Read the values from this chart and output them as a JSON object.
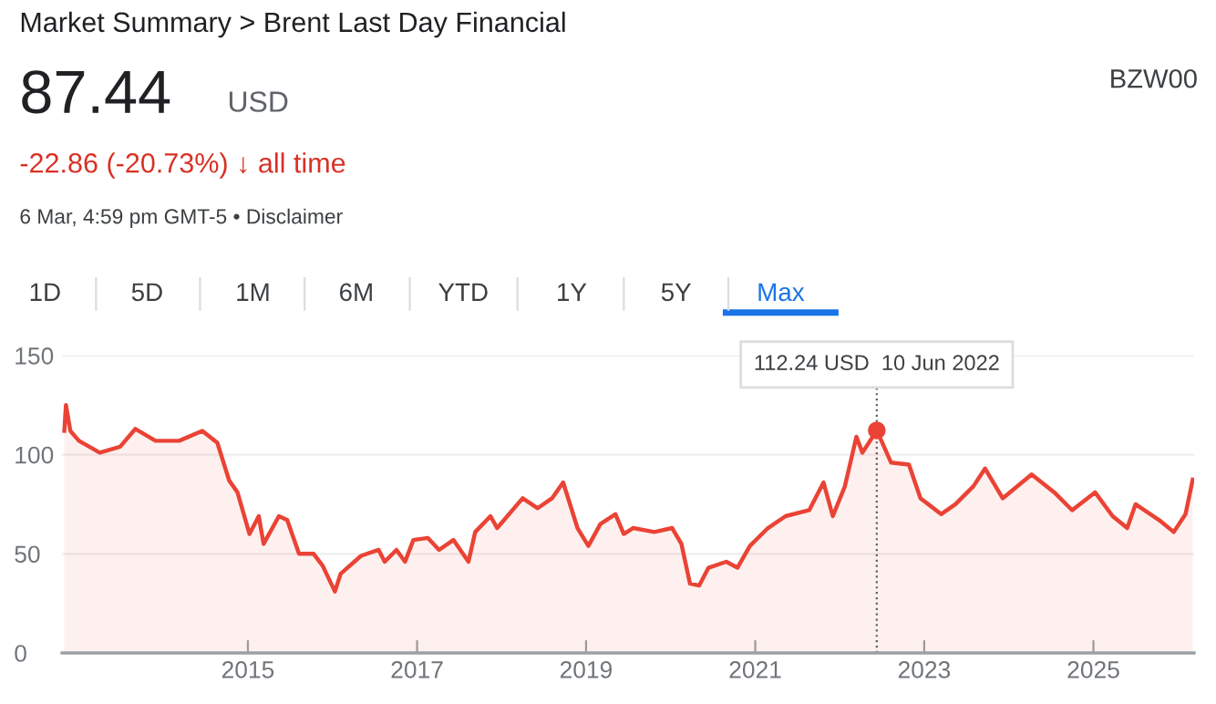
{
  "chart_data": {
    "type": "area",
    "title": "Market Summary > Brent Last Day Financial",
    "annotations": [
      "87.44",
      "USD",
      "-22.86 (-20.73%) ↓ all time",
      "6 Mar, 4:59 pm GMT-5 • Disclaimer",
      "BZW00",
      "1D",
      "5D",
      "1M",
      "6M",
      "YTD",
      "1Y",
      "5Y",
      "Max",
      {
        "text": "112.24 USD  10 Jun 2022",
        "x": "2022-06-10",
        "y": 112.24
      }
    ],
    "x": [
      "2012-10-30",
      "2012-11-06",
      "2012-11-25",
      "2013-01-01",
      "2013-04-01",
      "2013-06-28",
      "2013-09-02",
      "2013-11-28",
      "2014-03-10",
      "2014-06-18",
      "2014-08-22",
      "2014-10-12",
      "2014-11-17",
      "2015-01-08",
      "2015-02-17",
      "2015-03-10",
      "2015-05-15",
      "2015-06-20",
      "2015-08-10",
      "2015-10-12",
      "2015-11-20",
      "2016-01-12",
      "2016-02-06",
      "2016-05-04",
      "2016-07-19",
      "2016-08-14",
      "2016-10-04",
      "2016-11-10",
      "2016-12-16",
      "2017-02-17",
      "2017-04-06",
      "2017-06-07",
      "2017-08-11",
      "2017-09-09",
      "2017-11-14",
      "2017-12-13",
      "2018-04-02",
      "2018-06-06",
      "2018-08-07",
      "2018-09-24",
      "2018-11-25",
      "2019-01-11",
      "2019-03-04",
      "2019-05-08",
      "2019-06-13",
      "2019-07-23",
      "2019-10-23",
      "2020-01-08",
      "2020-02-17",
      "2020-03-25",
      "2020-05-04",
      "2020-06-13",
      "2020-08-29",
      "2020-10-16",
      "2020-12-09",
      "2021-02-25",
      "2021-05-12",
      "2021-08-22",
      "2021-10-23",
      "2021-12-02",
      "2022-01-23",
      "2022-03-14",
      "2022-04-09",
      "2022-06-10",
      "2022-08-11",
      "2022-10-27",
      "2022-12-16",
      "2023-03-15",
      "2023-05-16",
      "2023-08-01",
      "2023-09-21",
      "2023-12-06",
      "2024-04-09",
      "2024-07-16",
      "2024-10-01",
      "2025-01-08",
      "2025-03-25",
      "2025-05-27",
      "2025-07-02",
      "2025-10-12",
      "2025-12-14",
      "2026-02-03",
      "2026-03-06"
    ],
    "series": [
      {
        "color": "#ea4335",
        "values": [
          112,
          125,
          112,
          107,
          101,
          104,
          113,
          107,
          107,
          112,
          106,
          87,
          81,
          60,
          69,
          55,
          69,
          67,
          50,
          50,
          44,
          31,
          40,
          49,
          52,
          46,
          52,
          46,
          57,
          58,
          52,
          57,
          46,
          61,
          69,
          63,
          78,
          73,
          78,
          86,
          63,
          54,
          65,
          70,
          60,
          63,
          61,
          63,
          55,
          35,
          34,
          43,
          46,
          43,
          54,
          63,
          69,
          72,
          86,
          69,
          84,
          109,
          101,
          112.24,
          96,
          95,
          78,
          70,
          75,
          84,
          93,
          78,
          90,
          81,
          72,
          81,
          69,
          63,
          75,
          67,
          61,
          70,
          87.44
        ]
      }
    ],
    "ref_lines": [
      {
        "axis": "x",
        "value": "2022-06-10",
        "line_style": "dotted",
        "color": "#5f6368"
      }
    ],
    "xlim": [
      "2012-10-20",
      "2026-03-12"
    ],
    "xticks": [
      {
        "value": "2015",
        "label": "2015"
      },
      {
        "value": "2017",
        "label": "2017"
      },
      {
        "value": "2019",
        "label": "2019"
      },
      {
        "value": "2021",
        "label": "2021"
      },
      {
        "value": "2023",
        "label": "2023"
      },
      {
        "value": "2025",
        "label": "2025"
      }
    ],
    "ylim": [
      0,
      150
    ],
    "yticks": [
      0,
      50,
      100,
      150
    ],
    "grid": "y",
    "legend": false,
    "line_style": "solid",
    "marker": "none"
  }
}
